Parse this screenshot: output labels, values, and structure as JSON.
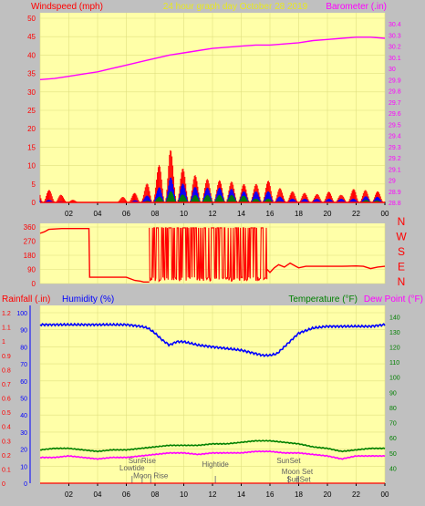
{
  "title": "24 hour graph day   October 28 2019",
  "colors": {
    "wind": "#ff0000",
    "gust": "#0000ff",
    "avg": "#008000",
    "baro": "#ff00ff",
    "rain": "#ff0000",
    "humidity": "#0000ff",
    "temp": "#008000",
    "dew": "#ff00ff",
    "plot_bg": "#ffffa8",
    "grid": "#e0e080",
    "panel_bg": "#c0c0c0"
  },
  "chart_data": [
    {
      "type": "line",
      "name": "wind_baro",
      "left_label": "Windspeed (mph)",
      "right_label": "Barometer (.in)",
      "left_ticks": [
        "0",
        "5",
        "10",
        "15",
        "20",
        "25",
        "30",
        "35",
        "40",
        "45",
        "50"
      ],
      "right_ticks": [
        "28.8",
        "28.9",
        "29",
        "29.1",
        "29.2",
        "29.3",
        "29.4",
        "29.5",
        "29.6",
        "29.7",
        "29.8",
        "29.9",
        "30",
        "30.1",
        "30.2",
        "30.3",
        "30.4"
      ],
      "x_ticks": [
        "02",
        "04",
        "06",
        "08",
        "10",
        "12",
        "14",
        "16",
        "18",
        "20",
        "22",
        "00"
      ],
      "ylim_left": [
        0,
        50
      ],
      "ylim_right": [
        28.8,
        30.45
      ],
      "xlim": [
        0,
        24
      ],
      "barometer": {
        "x": [
          0,
          1,
          2,
          3,
          4,
          5,
          6,
          7,
          8,
          9,
          10,
          11,
          12,
          13,
          14,
          15,
          16,
          17,
          18,
          19,
          20,
          21,
          22,
          23,
          24
        ],
        "y": [
          29.9,
          29.91,
          29.93,
          29.95,
          29.97,
          30.0,
          30.03,
          30.06,
          30.09,
          30.12,
          30.14,
          30.16,
          30.18,
          30.19,
          30.2,
          30.21,
          30.21,
          30.22,
          30.23,
          30.25,
          30.26,
          30.27,
          30.28,
          30.28,
          30.27
        ]
      },
      "wind_peak": {
        "x": [
          0,
          1,
          2,
          3,
          4,
          5,
          6,
          7,
          8,
          8.5,
          9,
          9.5,
          10,
          10.5,
          11,
          12,
          13,
          14,
          15,
          16,
          17,
          18,
          19,
          20,
          21,
          22,
          23,
          24
        ],
        "y": [
          4,
          3,
          1,
          0,
          0,
          0,
          2,
          3,
          8,
          12,
          15,
          11,
          9,
          8,
          7,
          6,
          6,
          5,
          5,
          6,
          3,
          3,
          2,
          3,
          2,
          4,
          3,
          3
        ]
      },
      "wind_gust": {
        "x": [
          0,
          2,
          4,
          6,
          7,
          8,
          8.5,
          9,
          9.5,
          10,
          11,
          12,
          13,
          14,
          15,
          16,
          17,
          18,
          20,
          22,
          23,
          24
        ],
        "y": [
          1,
          0,
          0,
          0,
          1,
          3,
          5,
          7,
          6,
          5,
          4,
          4,
          4,
          3,
          3,
          3,
          1,
          1,
          1,
          1,
          2,
          1
        ]
      },
      "wind_avg": {
        "x": [
          0,
          2,
          4,
          6,
          7,
          8,
          8.5,
          9,
          9.5,
          10,
          11,
          12,
          13,
          14,
          15,
          16,
          17,
          18,
          20,
          22,
          23,
          24
        ],
        "y": [
          0,
          0,
          0,
          0,
          0,
          1,
          2,
          3,
          3,
          2,
          2,
          2,
          2,
          2,
          1,
          1,
          0,
          0,
          0,
          0,
          1,
          0
        ]
      }
    },
    {
      "type": "line",
      "name": "wind_direction",
      "left_ticks": [
        "0",
        "90",
        "180",
        "270",
        "360"
      ],
      "compass": [
        "N",
        "W",
        "S",
        "E",
        "N"
      ],
      "ylim": [
        0,
        360
      ],
      "xlim": [
        0,
        24
      ],
      "direction": {
        "x": [
          0,
          0.3,
          0.6,
          1.5,
          2.8,
          3.4,
          3.45,
          3.6,
          5.0,
          6.0,
          6.6,
          7.0,
          7.2,
          7.4,
          7.6
        ],
        "y": [
          320,
          330,
          345,
          350,
          350,
          350,
          40,
          40,
          40,
          40,
          20,
          15,
          10,
          10,
          10
        ]
      },
      "direction_tail": {
        "x": [
          15.8,
          16.0,
          16.3,
          16.6,
          17.0,
          17.4,
          17.8,
          18.0,
          18.5,
          19.0,
          20.0,
          21.0,
          22.0,
          22.5,
          23.0,
          23.5,
          24.0
        ],
        "y": [
          90,
          70,
          100,
          120,
          105,
          130,
          110,
          100,
          110,
          110,
          110,
          110,
          112,
          110,
          95,
          105,
          110
        ]
      }
    },
    {
      "type": "line",
      "name": "rain_hum_temp",
      "left_label_1": "Rainfall (.in)",
      "left_label_2": "Humidity (%)",
      "right_label_1": "Temperature (°F)",
      "right_label_2": "Dew Point (°F)",
      "rain_ticks": [
        "0",
        "0.1",
        "0.2",
        "0.3",
        "0.4",
        "0.5",
        "0.6",
        "0.7",
        "0.8",
        "0.9",
        "1",
        "1.1",
        "1.2"
      ],
      "humidity_ticks": [
        "0",
        "10",
        "20",
        "30",
        "40",
        "50",
        "60",
        "70",
        "80",
        "90",
        "100"
      ],
      "temp_ticks": [
        "40",
        "50",
        "60",
        "70",
        "80",
        "90",
        "100",
        "110",
        "120",
        "130",
        "140"
      ],
      "x_ticks": [
        "02",
        "04",
        "06",
        "08",
        "10",
        "12",
        "14",
        "16",
        "18",
        "20",
        "22",
        "00"
      ],
      "ylim_humidity": [
        0,
        100
      ],
      "ylim_temp": [
        30,
        145
      ],
      "xlim": [
        0,
        24
      ],
      "humidity": {
        "x": [
          0,
          1,
          2,
          3,
          4,
          5,
          6,
          7,
          7.5,
          8,
          8.5,
          9,
          9.5,
          10,
          11,
          12,
          13,
          14,
          15,
          15.5,
          16,
          16.5,
          17,
          17.5,
          18,
          19,
          20,
          21,
          22,
          23,
          24
        ],
        "y": [
          93,
          93,
          93,
          93,
          93,
          93,
          93,
          92,
          91,
          88,
          84,
          81,
          83,
          83,
          81,
          80,
          79,
          78,
          76,
          75,
          75,
          76,
          80,
          84,
          88,
          91,
          92,
          92,
          92,
          92,
          93
        ]
      },
      "temperature": {
        "x": [
          0,
          1,
          2,
          3,
          4,
          5,
          6,
          7,
          8,
          9,
          10,
          11,
          12,
          13,
          14,
          15,
          16,
          17,
          18,
          19,
          20,
          21,
          22,
          23,
          24
        ],
        "y": [
          52,
          53,
          53,
          52,
          51,
          52,
          52,
          53,
          54,
          55,
          55,
          55,
          56,
          56,
          57,
          58,
          58,
          57,
          56,
          54,
          53,
          51,
          52,
          53,
          53
        ]
      },
      "dewpoint": {
        "x": [
          0,
          1,
          2,
          3,
          4,
          5,
          6,
          7,
          8,
          9,
          10,
          11,
          12,
          13,
          14,
          15,
          16,
          17,
          18,
          19,
          20,
          21,
          22,
          23,
          24
        ],
        "y": [
          47,
          47,
          48,
          47,
          46,
          47,
          47,
          48,
          49,
          50,
          50,
          49,
          50,
          50,
          50,
          51,
          51,
          50,
          50,
          49,
          48,
          46,
          48,
          48,
          48
        ]
      },
      "rainfall": {
        "x": [
          0,
          24
        ],
        "y": [
          0,
          0
        ]
      },
      "events": [
        {
          "label": "SunRise",
          "x": 7.1
        },
        {
          "label": "Lowtide",
          "x": 6.4
        },
        {
          "label": "Moon Rise",
          "x": 7.7
        },
        {
          "label": "Hightide",
          "x": 12.2
        },
        {
          "label": "SunSet",
          "x": 17.3
        },
        {
          "label": "Moon Set",
          "x": 17.9
        },
        {
          "label": "SunSet",
          "x": 18.0
        }
      ]
    }
  ]
}
